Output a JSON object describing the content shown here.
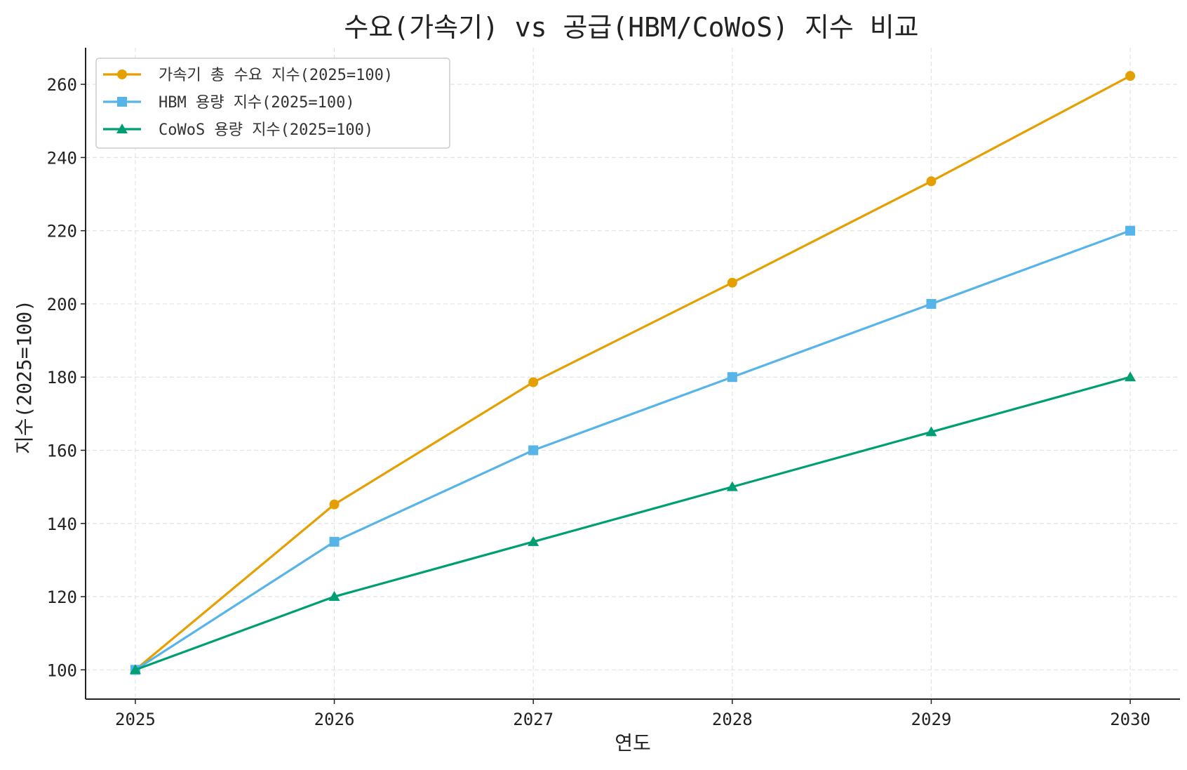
{
  "chart_data": {
    "type": "line",
    "title": "수요(가속기) vs 공급(HBM/CoWoS) 지수 비교",
    "xlabel": "연도",
    "ylabel": "지수(2025=100)",
    "x": [
      2025,
      2026,
      2027,
      2028,
      2029,
      2030
    ],
    "x_tick_labels": [
      "2025",
      "2026",
      "2027",
      "2028",
      "2029",
      "2030"
    ],
    "y_ticks": [
      100,
      120,
      140,
      160,
      180,
      200,
      220,
      240,
      260
    ],
    "y_tick_labels": [
      "100",
      "120",
      "140",
      "160",
      "180",
      "200",
      "220",
      "240",
      "260"
    ],
    "xlim": [
      2024.75,
      2030.25
    ],
    "ylim": [
      92,
      270
    ],
    "grid": true,
    "legend_position": "top-left",
    "series": [
      {
        "name": "가속기 총 수요 지수(2025=100)",
        "color": "#E69F00",
        "marker": "circle",
        "values": [
          100,
          145.2,
          178.6,
          205.8,
          233.5,
          262.3
        ]
      },
      {
        "name": "HBM 용량 지수(2025=100)",
        "color": "#56B4E9",
        "marker": "square",
        "values": [
          100,
          135,
          160,
          180,
          200,
          220
        ]
      },
      {
        "name": "CoWoS 용량 지수(2025=100)",
        "color": "#009E73",
        "marker": "triangle",
        "values": [
          100,
          120,
          135,
          150,
          165,
          180
        ]
      }
    ]
  }
}
